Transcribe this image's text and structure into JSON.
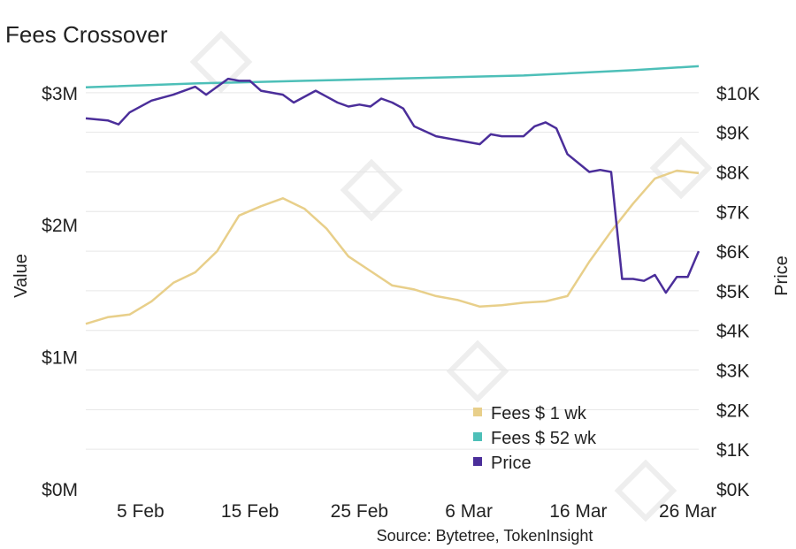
{
  "chart_data": {
    "type": "line",
    "title": "Fees Crossover",
    "source": "Source: Bytetree, TokenInsight",
    "x_ticks": [
      "5 Feb",
      "15 Feb",
      "25 Feb",
      "6 Mar",
      "16 Mar",
      "26 Mar"
    ],
    "x_range": [
      "2020-01-31",
      "2020-03-27"
    ],
    "y_left": {
      "label": "Value",
      "range": [
        0,
        3300000
      ],
      "ticks": [
        {
          "value": 0,
          "label": "$0M"
        },
        {
          "value": 1000000,
          "label": "$1M"
        },
        {
          "value": 2000000,
          "label": "$2M"
        },
        {
          "value": 3000000,
          "label": "$3M"
        }
      ]
    },
    "y_right": {
      "label": "Price",
      "range": [
        0,
        11000
      ],
      "ticks": [
        {
          "value": 0,
          "label": "$0K"
        },
        {
          "value": 1000,
          "label": "$1K"
        },
        {
          "value": 2000,
          "label": "$2K"
        },
        {
          "value": 3000,
          "label": "$3K"
        },
        {
          "value": 4000,
          "label": "$4K"
        },
        {
          "value": 5000,
          "label": "$5K"
        },
        {
          "value": 6000,
          "label": "$6K"
        },
        {
          "value": 7000,
          "label": "$7K"
        },
        {
          "value": 8000,
          "label": "$8K"
        },
        {
          "value": 9000,
          "label": "$9K"
        },
        {
          "value": 10000,
          "label": "$10K"
        }
      ]
    },
    "grid": true,
    "legend_position": "bottom-right",
    "series": [
      {
        "name": "Fees $ 1 wk",
        "axis": "left",
        "color": "#e8cf8a",
        "points": [
          [
            "2020-01-31",
            1250000
          ],
          [
            "2020-02-02",
            1300000
          ],
          [
            "2020-02-04",
            1320000
          ],
          [
            "2020-02-06",
            1420000
          ],
          [
            "2020-02-08",
            1560000
          ],
          [
            "2020-02-10",
            1640000
          ],
          [
            "2020-02-12",
            1800000
          ],
          [
            "2020-02-14",
            2070000
          ],
          [
            "2020-02-16",
            2140000
          ],
          [
            "2020-02-18",
            2200000
          ],
          [
            "2020-02-20",
            2120000
          ],
          [
            "2020-02-22",
            1970000
          ],
          [
            "2020-02-24",
            1760000
          ],
          [
            "2020-02-26",
            1650000
          ],
          [
            "2020-02-28",
            1540000
          ],
          [
            "2020-03-01",
            1510000
          ],
          [
            "2020-03-03",
            1460000
          ],
          [
            "2020-03-05",
            1430000
          ],
          [
            "2020-03-07",
            1380000
          ],
          [
            "2020-03-09",
            1390000
          ],
          [
            "2020-03-11",
            1410000
          ],
          [
            "2020-03-13",
            1420000
          ],
          [
            "2020-03-15",
            1460000
          ],
          [
            "2020-03-17",
            1720000
          ],
          [
            "2020-03-19",
            1950000
          ],
          [
            "2020-03-21",
            2160000
          ],
          [
            "2020-03-23",
            2350000
          ],
          [
            "2020-03-25",
            2410000
          ],
          [
            "2020-03-27",
            2390000
          ]
        ]
      },
      {
        "name": "Fees $ 52 wk",
        "axis": "left",
        "color": "#4dbfb8",
        "points": [
          [
            "2020-01-31",
            3040000
          ],
          [
            "2020-02-10",
            3070000
          ],
          [
            "2020-02-20",
            3090000
          ],
          [
            "2020-03-01",
            3110000
          ],
          [
            "2020-03-11",
            3130000
          ],
          [
            "2020-03-21",
            3170000
          ],
          [
            "2020-03-27",
            3200000
          ]
        ]
      },
      {
        "name": "Price",
        "axis": "right",
        "color": "#4b2e9a",
        "points": [
          [
            "2020-01-31",
            9350
          ],
          [
            "2020-02-02",
            9300
          ],
          [
            "2020-02-03",
            9200
          ],
          [
            "2020-02-04",
            9500
          ],
          [
            "2020-02-06",
            9800
          ],
          [
            "2020-02-08",
            9950
          ],
          [
            "2020-02-10",
            10150
          ],
          [
            "2020-02-11",
            9950
          ],
          [
            "2020-02-13",
            10350
          ],
          [
            "2020-02-14",
            10300
          ],
          [
            "2020-02-15",
            10300
          ],
          [
            "2020-02-16",
            10050
          ],
          [
            "2020-02-18",
            9950
          ],
          [
            "2020-02-19",
            9750
          ],
          [
            "2020-02-21",
            10050
          ],
          [
            "2020-02-22",
            9900
          ],
          [
            "2020-02-23",
            9750
          ],
          [
            "2020-02-24",
            9650
          ],
          [
            "2020-02-25",
            9700
          ],
          [
            "2020-02-26",
            9650
          ],
          [
            "2020-02-27",
            9850
          ],
          [
            "2020-02-28",
            9750
          ],
          [
            "2020-02-29",
            9600
          ],
          [
            "2020-03-01",
            9150
          ],
          [
            "2020-03-03",
            8900
          ],
          [
            "2020-03-05",
            8800
          ],
          [
            "2020-03-07",
            8700
          ],
          [
            "2020-03-08",
            8950
          ],
          [
            "2020-03-09",
            8900
          ],
          [
            "2020-03-11",
            8900
          ],
          [
            "2020-03-12",
            9150
          ],
          [
            "2020-03-13",
            9250
          ],
          [
            "2020-03-14",
            9100
          ],
          [
            "2020-03-15",
            8450
          ],
          [
            "2020-03-17",
            8000
          ],
          [
            "2020-03-18",
            8050
          ],
          [
            "2020-03-19",
            8000
          ],
          [
            "2020-03-20",
            5300
          ],
          [
            "2020-03-21",
            5300
          ],
          [
            "2020-03-22",
            5250
          ],
          [
            "2020-03-23",
            5400
          ],
          [
            "2020-03-24",
            4950
          ],
          [
            "2020-03-25",
            5350
          ],
          [
            "2020-03-26",
            5350
          ],
          [
            "2020-03-27",
            6000
          ]
        ]
      }
    ]
  }
}
